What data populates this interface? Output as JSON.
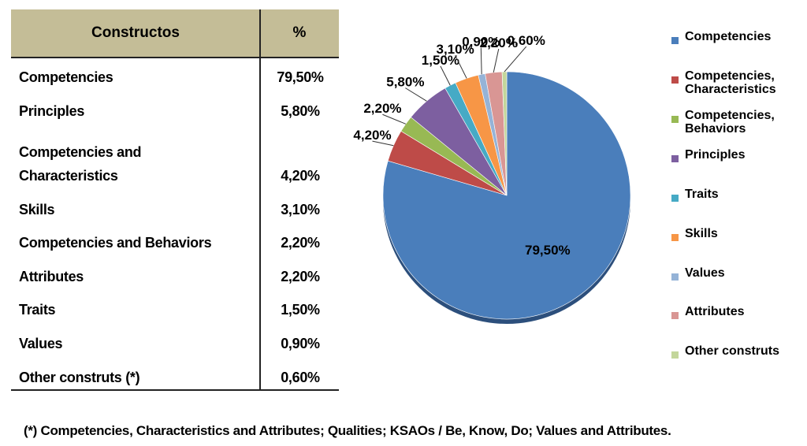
{
  "table": {
    "headers": [
      "Constructos",
      "%"
    ],
    "rows": [
      {
        "name": "Competencies",
        "pct": "79,50%"
      },
      {
        "name": "Principles",
        "pct": "5,80%"
      },
      {
        "name": "Competencies and",
        "name2": "Characteristics",
        "pct": "4,20%"
      },
      {
        "name": "Skills",
        "pct": "3,10%"
      },
      {
        "name": "Competencies and Behaviors",
        "pct": "2,20%"
      },
      {
        "name": "Attributes",
        "pct": "2,20%"
      },
      {
        "name": "Traits",
        "pct": "1,50%"
      },
      {
        "name": "Values",
        "pct": "0,90%"
      },
      {
        "name": "Other construts (*)",
        "pct": "0,60%"
      }
    ]
  },
  "chart_data": {
    "type": "pie",
    "labels": [
      "Competencies",
      "Competencies, Characteristics",
      "Competencies, Behaviors",
      "Principles",
      "Traits",
      "Skills",
      "Values",
      "Attributes",
      "Other construts"
    ],
    "values": [
      79.5,
      4.2,
      2.2,
      5.8,
      1.5,
      3.1,
      0.9,
      2.2,
      0.6
    ],
    "data_labels": [
      "79,50%",
      "4,20%",
      "2,20%",
      "5,80%",
      "1,50%",
      "3,10%",
      "0,90%",
      "2,20%",
      "0,60%"
    ],
    "colors": [
      "#4a7ebb",
      "#be4b48",
      "#98b954",
      "#7d5fa0",
      "#46aac5",
      "#f79646",
      "#95b3d7",
      "#d99694",
      "#c3d69b"
    ],
    "legend_position": "right"
  },
  "legend": {
    "items": [
      {
        "line1": "Competencies",
        "line2": "",
        "color": "#4a7ebb"
      },
      {
        "line1": "Competencies,",
        "line2": "Characteristics",
        "color": "#be4b48"
      },
      {
        "line1": "Competencies,",
        "line2": "Behaviors",
        "color": "#98b954"
      },
      {
        "line1": "Principles",
        "line2": "",
        "color": "#7d5fa0"
      },
      {
        "line1": "Traits",
        "line2": "",
        "color": "#46aac5"
      },
      {
        "line1": "Skills",
        "line2": "",
        "color": "#f79646"
      },
      {
        "line1": "Values",
        "line2": "",
        "color": "#95b3d7"
      },
      {
        "line1": "Attributes",
        "line2": "",
        "color": "#d99694"
      },
      {
        "line1": "Other construts",
        "line2": "",
        "color": "#c3d69b"
      }
    ]
  },
  "footnote": "(*) Competencies, Characteristics and Attributes; Qualities; KSAOs / Be, Know, Do; Values and Attributes."
}
